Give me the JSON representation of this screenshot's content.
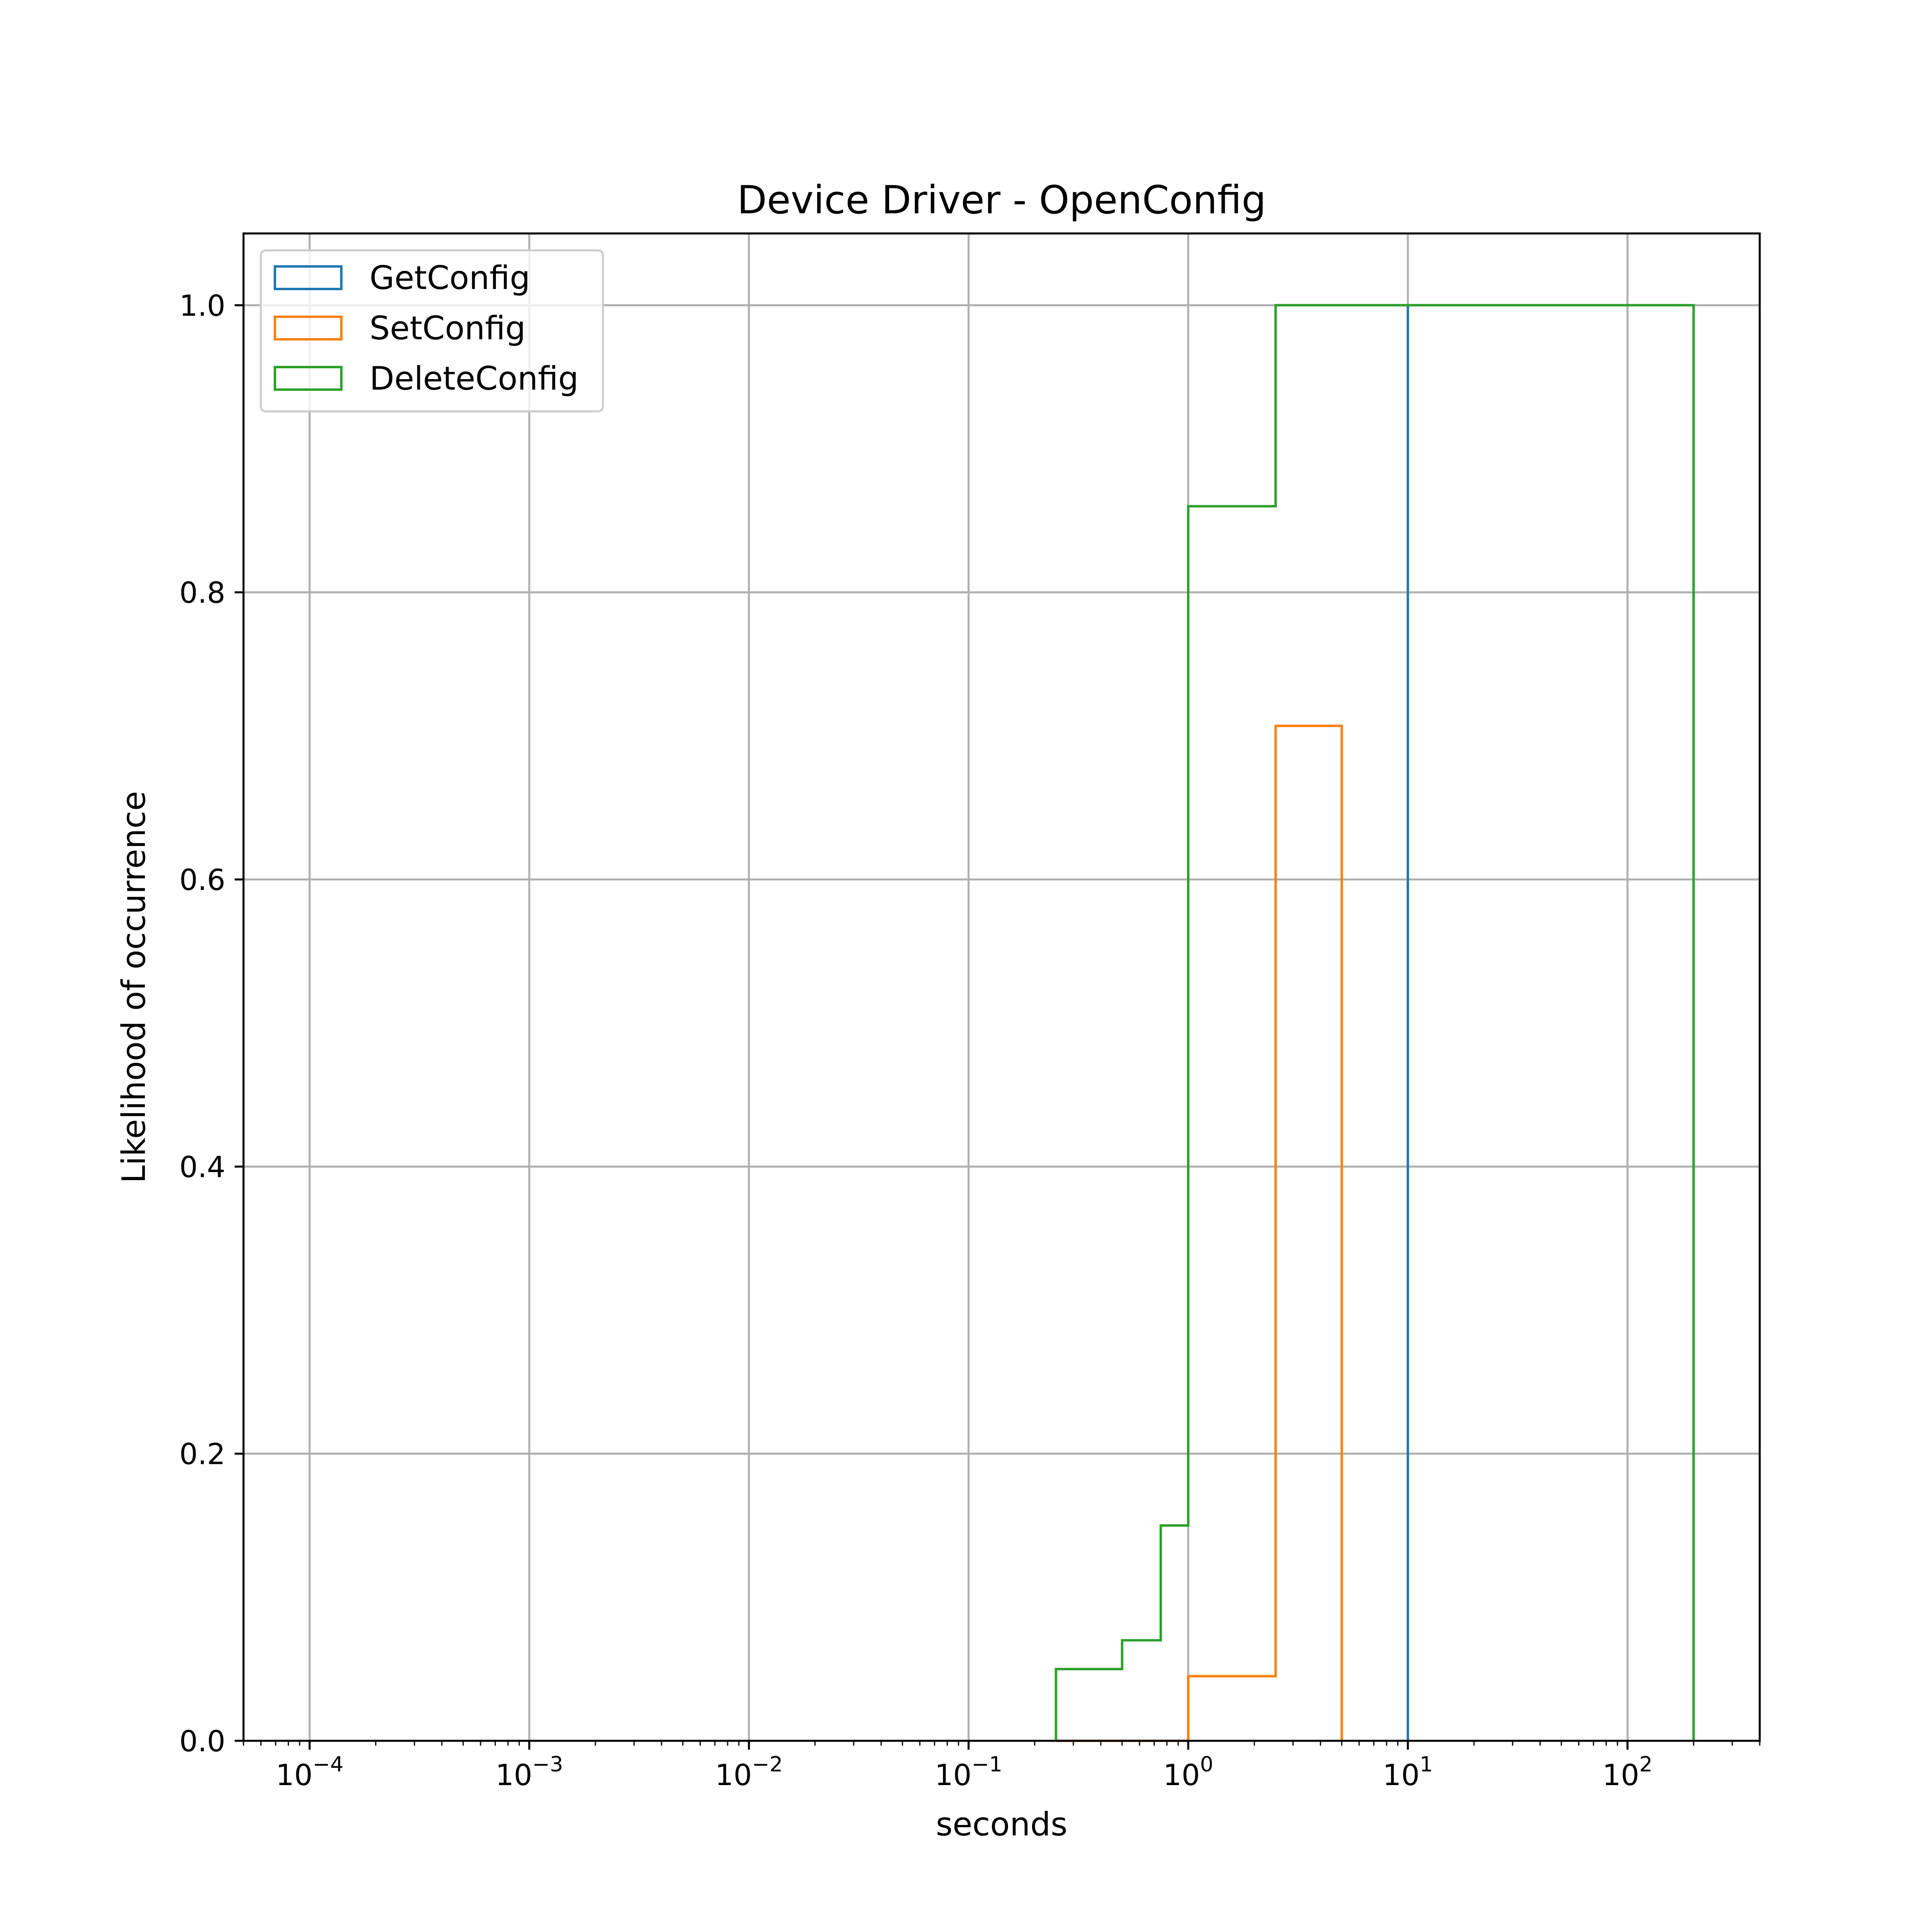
{
  "chart_data": {
    "type": "line",
    "title": "Device Driver - OpenConfig",
    "xlabel": "seconds",
    "ylabel": "Likelihood of occurrence",
    "xscale": "log",
    "xlim": [
      5e-05,
      400
    ],
    "ylim": [
      0,
      1.05
    ],
    "grid": true,
    "legend_position": "top-left",
    "x_ticks": [
      {
        "value": 0.0001,
        "base": "10",
        "exp": "−4"
      },
      {
        "value": 0.001,
        "base": "10",
        "exp": "−3"
      },
      {
        "value": 0.01,
        "base": "10",
        "exp": "−2"
      },
      {
        "value": 0.1,
        "base": "10",
        "exp": "−1"
      },
      {
        "value": 1,
        "base": "10",
        "exp": "0"
      },
      {
        "value": 10,
        "base": "10",
        "exp": "1"
      },
      {
        "value": 100,
        "base": "10",
        "exp": "2"
      }
    ],
    "y_ticks": [
      {
        "value": 0.0,
        "label": "0.0"
      },
      {
        "value": 0.2,
        "label": "0.2"
      },
      {
        "value": 0.4,
        "label": "0.4"
      },
      {
        "value": 0.6,
        "label": "0.6"
      },
      {
        "value": 0.8,
        "label": "0.8"
      },
      {
        "value": 1.0,
        "label": "1.0"
      }
    ],
    "series": [
      {
        "name": "GetConfig",
        "color": "#1f77b4",
        "bin_edges": [
          10,
          10
        ],
        "values": [
          1.0
        ]
      },
      {
        "name": "SetConfig",
        "color": "#ff7f0e",
        "bin_edges": [
          0.25,
          0.5,
          0.75,
          1,
          2.5,
          5
        ],
        "values": [
          0,
          0,
          0,
          0.045,
          0.707
        ]
      },
      {
        "name": "DeleteConfig",
        "color": "#2ca02c",
        "bin_edges": [
          0.25,
          0.5,
          0.75,
          1,
          2.5,
          5,
          10,
          200
        ],
        "values": [
          0.05,
          0.07,
          0.15,
          0.86,
          1.0,
          1.0,
          1.0
        ]
      }
    ]
  }
}
